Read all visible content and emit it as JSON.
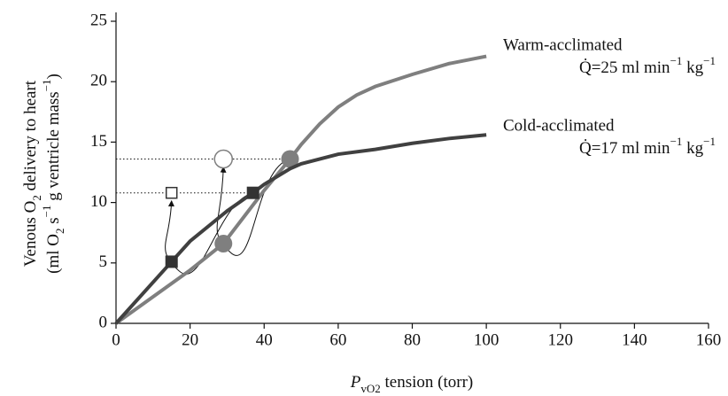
{
  "chart_data": {
    "type": "line",
    "xlabel": [
      "P",
      "vO",
      "2",
      " tension (torr)"
    ],
    "ylabel": [
      [
        "Venous O",
        "2",
        " delivery to heart"
      ],
      [
        "(ml O",
        "2",
        " s",
        "−1",
        " g ventricle mass",
        "−1",
        ")"
      ]
    ],
    "xlim": [
      0,
      160
    ],
    "xticks": [
      0,
      20,
      40,
      60,
      80,
      100,
      120,
      140,
      160
    ],
    "ylim": [
      0,
      25
    ],
    "yticks": [
      0,
      5,
      10,
      15,
      20,
      25
    ],
    "series": [
      {
        "name": "Warm-acclimated",
        "flow": [
          "Q̇=25 ml min",
          "−1",
          " kg",
          "−1"
        ],
        "color": "#7f7f7f",
        "x": [
          0,
          10,
          20,
          29,
          35,
          40,
          47,
          50,
          55,
          60,
          65,
          70,
          80,
          90,
          100
        ],
        "values": [
          0,
          2.2,
          4.4,
          6.6,
          9.0,
          11.0,
          13.6,
          14.8,
          16.5,
          17.9,
          18.9,
          19.6,
          20.6,
          21.5,
          22.1
        ],
        "markers": {
          "x": [
            29,
            47
          ],
          "values": [
            6.6,
            13.6
          ]
        },
        "open_marker": {
          "x": 29,
          "value": 13.6
        }
      },
      {
        "name": "Cold-acclimated",
        "flow": [
          "Q̇=17 ml min",
          "−1",
          " kg",
          "−1"
        ],
        "color": "#404040",
        "x": [
          0,
          15,
          20,
          30,
          37,
          40,
          47,
          50,
          60,
          70,
          80,
          90,
          100
        ],
        "values": [
          0,
          5.1,
          6.8,
          9.3,
          10.8,
          11.5,
          12.8,
          13.2,
          14.0,
          14.4,
          14.9,
          15.3,
          15.6
        ],
        "markers": {
          "x": [
            15,
            37
          ],
          "values": [
            5.1,
            10.8
          ]
        },
        "open_marker": {
          "x": 15,
          "value": 10.8
        }
      }
    ]
  }
}
